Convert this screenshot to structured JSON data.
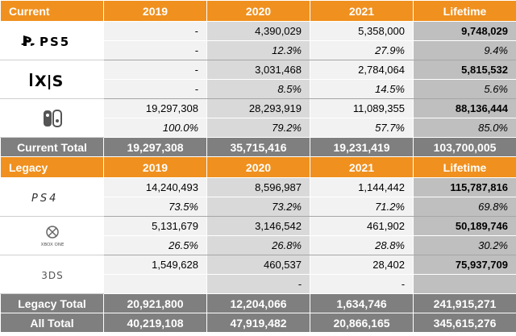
{
  "header_current": {
    "label": "Current",
    "years": [
      "2019",
      "2020",
      "2021",
      "Lifetime"
    ]
  },
  "platforms_current": [
    {
      "icon": "ps5-logo-icon",
      "values": [
        "-",
        "4,390,029",
        "5,358,000",
        "9,748,029"
      ],
      "shares": [
        "-",
        "12.3%",
        "27.9%",
        "9.4%"
      ]
    },
    {
      "icon": "xbox-series-xs-logo-icon",
      "values": [
        "-",
        "3,031,468",
        "2,784,064",
        "5,815,532"
      ],
      "shares": [
        "-",
        "8.5%",
        "14.5%",
        "5.6%"
      ]
    },
    {
      "icon": "nintendo-switch-logo-icon",
      "values": [
        "19,297,308",
        "28,293,919",
        "11,089,355",
        "88,136,444"
      ],
      "shares": [
        "100.0%",
        "79.2%",
        "57.7%",
        "85.0%"
      ]
    }
  ],
  "current_total": {
    "label": "Current Total",
    "values": [
      "19,297,308",
      "35,715,416",
      "19,231,419",
      "103,700,005"
    ]
  },
  "header_legacy": {
    "label": "Legacy",
    "years": [
      "2019",
      "2020",
      "2021",
      "Lifetime"
    ]
  },
  "platforms_legacy": [
    {
      "icon": "ps4-logo-icon",
      "values": [
        "14,240,493",
        "8,596,987",
        "1,144,442",
        "115,787,816"
      ],
      "shares": [
        "73.5%",
        "73.2%",
        "71.2%",
        "69.8%"
      ]
    },
    {
      "icon": "xbox-one-logo-icon",
      "values": [
        "5,131,679",
        "3,146,542",
        "461,902",
        "50,189,746"
      ],
      "shares": [
        "26.5%",
        "26.8%",
        "28.8%",
        "30.2%"
      ]
    },
    {
      "icon": "3ds-logo-icon",
      "values": [
        "1,549,628",
        "460,537",
        "28,402",
        "75,937,709"
      ],
      "shares": [
        "",
        "-",
        "-",
        ""
      ]
    }
  ],
  "legacy_total": {
    "label": "Legacy Total",
    "values": [
      "20,921,800",
      "12,204,066",
      "1,634,746",
      "241,915,271"
    ]
  },
  "all_total": {
    "label": "All Total",
    "values": [
      "40,219,108",
      "47,919,482",
      "20,866,165",
      "345,615,276"
    ]
  },
  "logo_text": {
    "ps5": "PS5",
    "xbox_xs": "X|S",
    "ps4": "PS4",
    "xbox_one": "XBOX ONE",
    "ds3": "3DS"
  },
  "colors": {
    "header": "#f0901e",
    "total": "#7f7f7f",
    "lifetime": "#bfbfbf",
    "col2020": "#d9d9d9",
    "col_light": "#f2f2f2"
  }
}
